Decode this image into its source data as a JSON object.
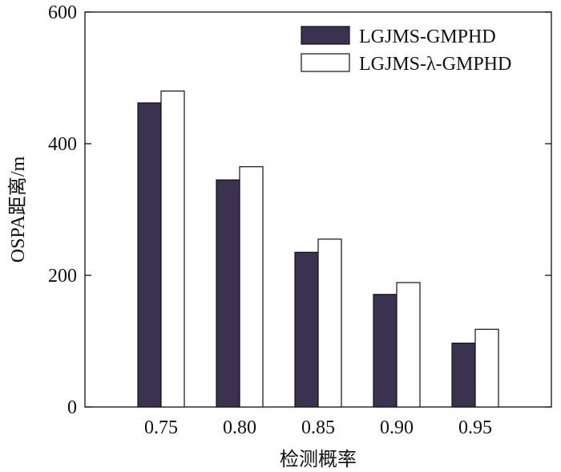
{
  "chart_data": {
    "type": "bar",
    "title": "",
    "xlabel": "检测概率",
    "ylabel": "OSPA距离/m",
    "categories": [
      "0.75",
      "0.80",
      "0.85",
      "0.90",
      "0.95"
    ],
    "series": [
      {
        "name": "LGJMS-GMPHD",
        "values": [
          462,
          345,
          235,
          171,
          97
        ],
        "color": "#3b3150"
      },
      {
        "name": "LGJMS-λ-GMPHD",
        "values": [
          480,
          365,
          255,
          189,
          118
        ],
        "color": "#ffffff"
      }
    ],
    "ylim": [
      0,
      600
    ],
    "yticks": [
      0,
      200,
      400,
      600
    ],
    "grid": false,
    "legend_position": "top-right"
  }
}
